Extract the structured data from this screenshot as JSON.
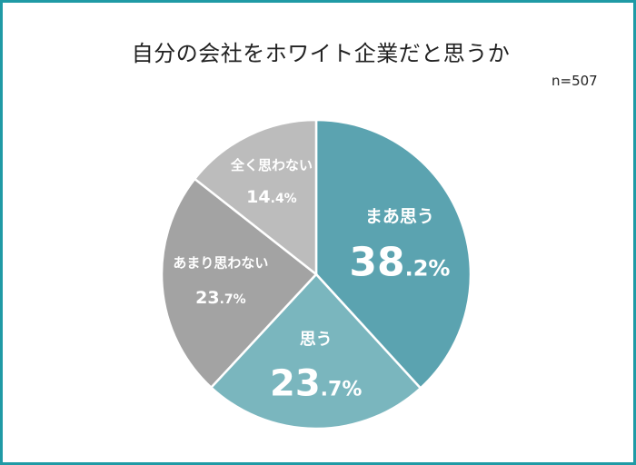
{
  "title": "自分の会社をホワイト企業だと思うか",
  "sample_size": "n=507",
  "chart_data": {
    "type": "pie",
    "title": "自分の会社をホワイト企業だと思うか",
    "note": "n=507",
    "slices": [
      {
        "label": "まあ思う",
        "value": 38.2,
        "int": "38",
        "dec": ".2%",
        "color": "#5ba3b0"
      },
      {
        "label": "思う",
        "value": 23.7,
        "int": "23",
        "dec": ".7%",
        "color": "#7ab6be"
      },
      {
        "label": "あまり思わない",
        "value": 23.7,
        "int": "23",
        "dec": ".7%",
        "color": "#a3a3a3"
      },
      {
        "label": "全く思わない",
        "value": 14.4,
        "int": "14",
        "dec": ".4%",
        "color": "#bcbcbc"
      }
    ]
  }
}
